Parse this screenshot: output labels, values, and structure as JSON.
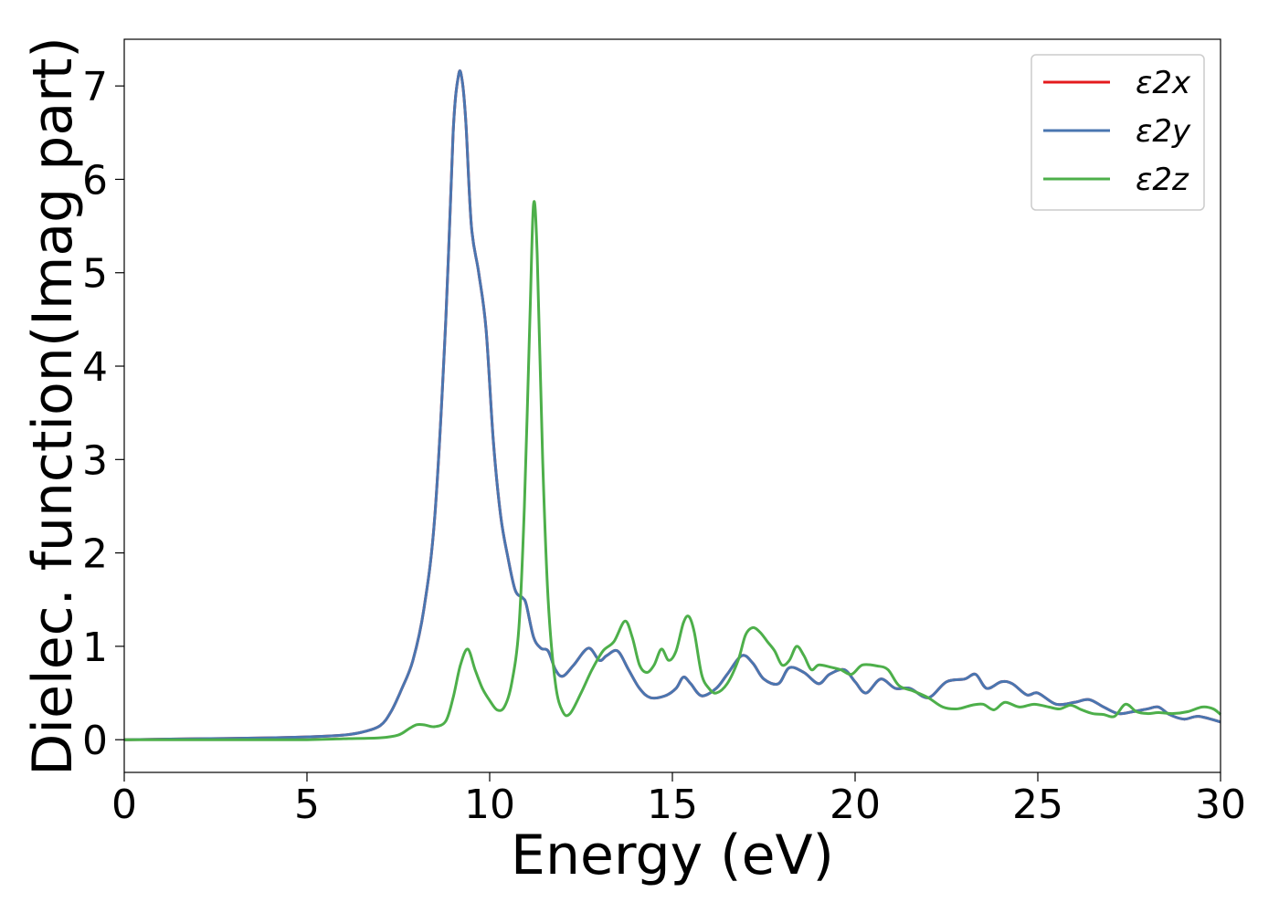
{
  "chart_data": {
    "type": "line",
    "title": "",
    "xlabel": "Energy (eV)",
    "ylabel": "Dielec. function(Imag part)",
    "xlim": [
      0,
      30
    ],
    "ylim": [
      -0.35,
      7.5
    ],
    "xticks": [
      0,
      5,
      10,
      15,
      20,
      25,
      30
    ],
    "yticks": [
      0,
      1,
      2,
      3,
      4,
      5,
      6,
      7
    ],
    "grid": false,
    "legend_position": "top-right",
    "series": [
      {
        "name": "ε2x",
        "color": "#e41a1c",
        "x": [
          0,
          2,
          4,
          5,
          6,
          6.5,
          7,
          7.3,
          7.6,
          7.9,
          8.2,
          8.5,
          8.8,
          9.0,
          9.15,
          9.25,
          9.35,
          9.5,
          9.7,
          9.9,
          10.1,
          10.3,
          10.5,
          10.7,
          10.9,
          11.0,
          11.2,
          11.4,
          11.6,
          11.8,
          12.0,
          12.3,
          12.7,
          13.0,
          13.2,
          13.5,
          13.8,
          14.1,
          14.4,
          14.8,
          15.1,
          15.3,
          15.5,
          15.8,
          16.2,
          16.5,
          16.9,
          17.2,
          17.5,
          17.9,
          18.2,
          18.6,
          19.0,
          19.3,
          19.7,
          20.0,
          20.3,
          20.7,
          21.1,
          21.5,
          22.0,
          22.5,
          23.0,
          23.3,
          23.6,
          24.0,
          24.3,
          24.7,
          25.0,
          25.5,
          26.0,
          26.4,
          26.8,
          27.2,
          27.6,
          28.0,
          28.3,
          28.6,
          29.0,
          29.4,
          30.0
        ],
        "y": [
          0.0,
          0.01,
          0.02,
          0.03,
          0.05,
          0.08,
          0.15,
          0.3,
          0.55,
          0.85,
          1.4,
          2.4,
          4.5,
          6.5,
          7.12,
          7.05,
          6.6,
          5.5,
          5.0,
          4.4,
          3.2,
          2.4,
          1.95,
          1.6,
          1.52,
          1.45,
          1.1,
          0.98,
          0.95,
          0.75,
          0.68,
          0.8,
          0.98,
          0.85,
          0.9,
          0.95,
          0.75,
          0.55,
          0.45,
          0.47,
          0.55,
          0.67,
          0.6,
          0.47,
          0.55,
          0.7,
          0.9,
          0.82,
          0.65,
          0.6,
          0.77,
          0.72,
          0.6,
          0.7,
          0.75,
          0.62,
          0.5,
          0.65,
          0.55,
          0.55,
          0.45,
          0.62,
          0.65,
          0.7,
          0.55,
          0.62,
          0.6,
          0.48,
          0.5,
          0.38,
          0.4,
          0.43,
          0.35,
          0.28,
          0.3,
          0.33,
          0.35,
          0.27,
          0.22,
          0.25,
          0.19
        ]
      },
      {
        "name": "ε2y",
        "color": "#4a76b0",
        "x": [
          0,
          2,
          4,
          5,
          6,
          6.5,
          7,
          7.3,
          7.6,
          7.9,
          8.2,
          8.5,
          8.8,
          9.0,
          9.15,
          9.25,
          9.35,
          9.5,
          9.7,
          9.9,
          10.1,
          10.3,
          10.5,
          10.7,
          10.9,
          11.0,
          11.2,
          11.4,
          11.6,
          11.8,
          12.0,
          12.3,
          12.7,
          13.0,
          13.2,
          13.5,
          13.8,
          14.1,
          14.4,
          14.8,
          15.1,
          15.3,
          15.5,
          15.8,
          16.2,
          16.5,
          16.9,
          17.2,
          17.5,
          17.9,
          18.2,
          18.6,
          19.0,
          19.3,
          19.7,
          20.0,
          20.3,
          20.7,
          21.1,
          21.5,
          22.0,
          22.5,
          23.0,
          23.3,
          23.6,
          24.0,
          24.3,
          24.7,
          25.0,
          25.5,
          26.0,
          26.4,
          26.8,
          27.2,
          27.6,
          28.0,
          28.3,
          28.6,
          29.0,
          29.4,
          30.0
        ],
        "y": [
          0.0,
          0.01,
          0.02,
          0.03,
          0.05,
          0.08,
          0.15,
          0.3,
          0.55,
          0.85,
          1.4,
          2.4,
          4.5,
          6.5,
          7.12,
          7.05,
          6.6,
          5.5,
          5.0,
          4.4,
          3.2,
          2.4,
          1.95,
          1.6,
          1.52,
          1.45,
          1.1,
          0.98,
          0.95,
          0.75,
          0.68,
          0.8,
          0.98,
          0.85,
          0.9,
          0.95,
          0.75,
          0.55,
          0.45,
          0.47,
          0.55,
          0.67,
          0.6,
          0.47,
          0.55,
          0.7,
          0.9,
          0.82,
          0.65,
          0.6,
          0.77,
          0.72,
          0.6,
          0.7,
          0.75,
          0.62,
          0.5,
          0.65,
          0.55,
          0.55,
          0.45,
          0.62,
          0.65,
          0.7,
          0.55,
          0.62,
          0.6,
          0.48,
          0.5,
          0.38,
          0.4,
          0.43,
          0.35,
          0.28,
          0.3,
          0.33,
          0.35,
          0.27,
          0.22,
          0.25,
          0.19
        ]
      },
      {
        "name": "ε2z",
        "color": "#4daf4a",
        "x": [
          0,
          3,
          5,
          6,
          7,
          7.5,
          7.8,
          8.0,
          8.2,
          8.5,
          8.8,
          9.0,
          9.2,
          9.4,
          9.6,
          9.8,
          10.0,
          10.2,
          10.4,
          10.6,
          10.8,
          10.95,
          11.1,
          11.2,
          11.3,
          11.45,
          11.6,
          11.8,
          12.0,
          12.2,
          12.5,
          12.8,
          13.1,
          13.4,
          13.7,
          13.9,
          14.1,
          14.3,
          14.5,
          14.7,
          14.9,
          15.1,
          15.3,
          15.45,
          15.6,
          15.8,
          16.0,
          16.2,
          16.5,
          16.8,
          17.0,
          17.2,
          17.4,
          17.6,
          17.8,
          18.0,
          18.2,
          18.4,
          18.6,
          18.8,
          19.0,
          19.3,
          19.6,
          19.9,
          20.2,
          20.6,
          20.9,
          21.2,
          21.6,
          22.0,
          22.4,
          22.8,
          23.2,
          23.5,
          23.8,
          24.1,
          24.5,
          24.9,
          25.3,
          25.6,
          25.9,
          26.2,
          26.5,
          26.8,
          27.1,
          27.4,
          27.7,
          28.0,
          28.3,
          28.7,
          29.1,
          29.5,
          29.8,
          30.0
        ],
        "y": [
          0.0,
          0.0,
          0.0,
          0.01,
          0.02,
          0.05,
          0.12,
          0.16,
          0.16,
          0.14,
          0.2,
          0.45,
          0.8,
          0.97,
          0.75,
          0.55,
          0.42,
          0.32,
          0.35,
          0.6,
          1.2,
          2.5,
          4.5,
          5.73,
          5.2,
          3.0,
          1.5,
          0.6,
          0.3,
          0.28,
          0.5,
          0.75,
          0.95,
          1.05,
          1.27,
          1.1,
          0.8,
          0.72,
          0.8,
          0.97,
          0.85,
          0.95,
          1.25,
          1.32,
          1.15,
          0.7,
          0.55,
          0.5,
          0.6,
          0.85,
          1.12,
          1.2,
          1.15,
          1.05,
          0.95,
          0.8,
          0.85,
          1.0,
          0.9,
          0.75,
          0.8,
          0.78,
          0.75,
          0.7,
          0.8,
          0.79,
          0.75,
          0.58,
          0.52,
          0.45,
          0.35,
          0.33,
          0.37,
          0.38,
          0.32,
          0.4,
          0.35,
          0.38,
          0.35,
          0.33,
          0.37,
          0.32,
          0.28,
          0.27,
          0.25,
          0.38,
          0.3,
          0.28,
          0.29,
          0.28,
          0.3,
          0.35,
          0.33,
          0.27
        ]
      }
    ]
  }
}
